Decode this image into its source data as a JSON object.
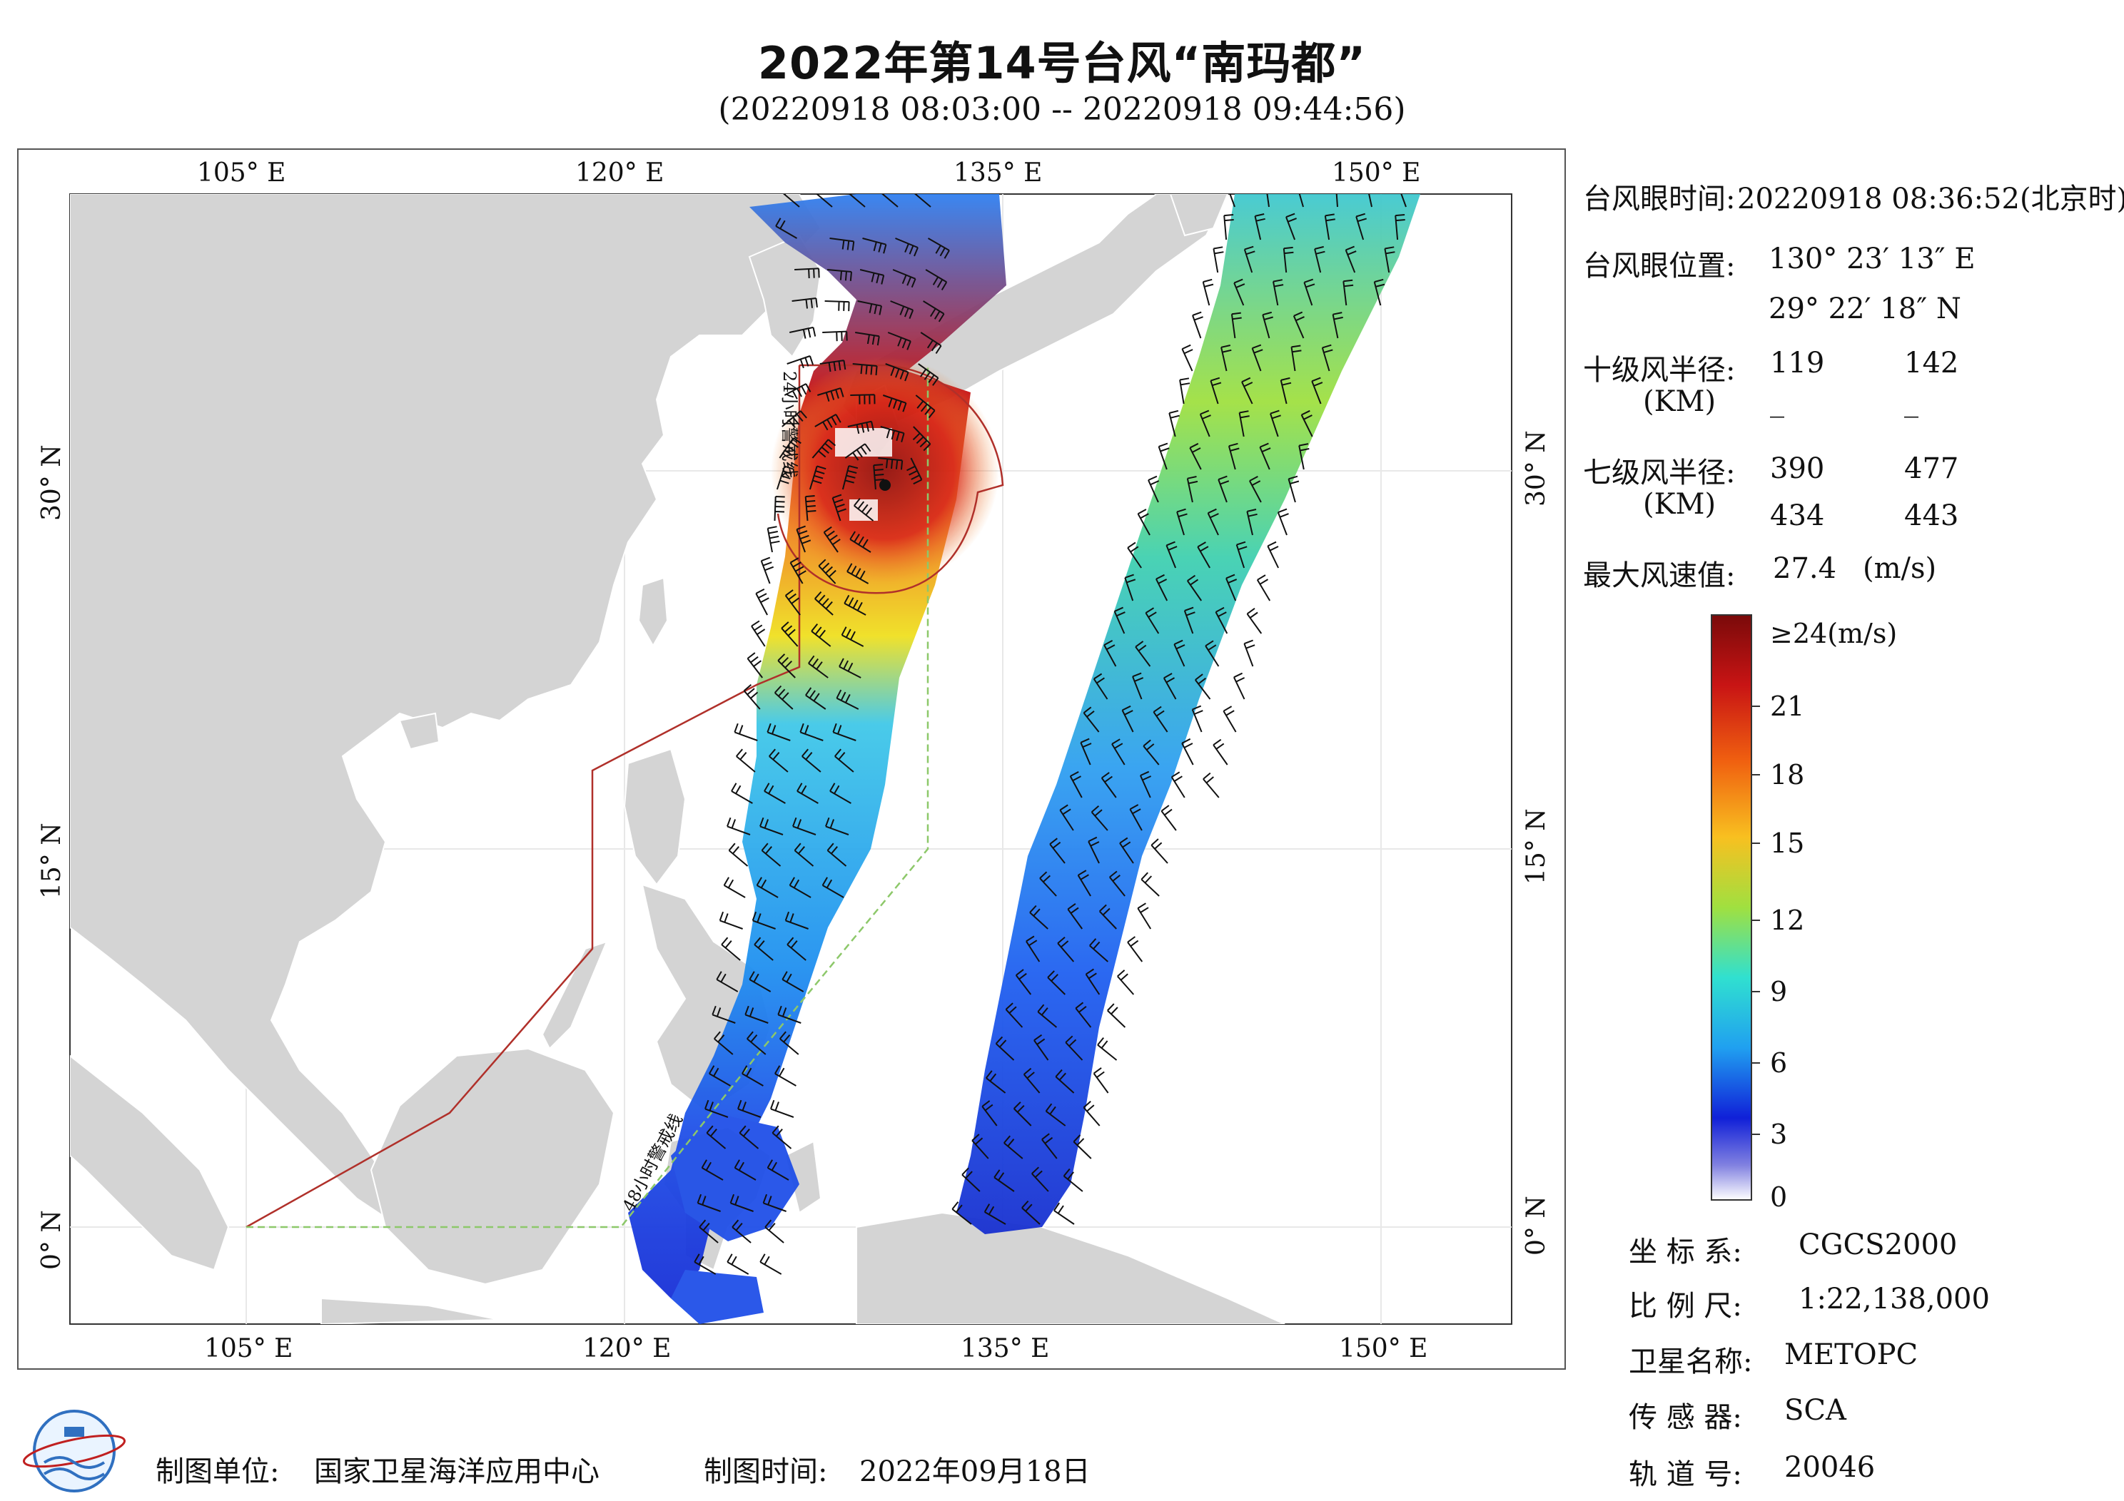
{
  "header": {
    "title": "2022年第14号台风“南玛都”",
    "subtitle": "(20220918 08:03:00 -- 20220918 09:44:56)"
  },
  "map": {
    "lon_labels": [
      "105° E",
      "120° E",
      "135° E",
      "150° E"
    ],
    "lat_labels": [
      "30° N",
      "15° N",
      "0° N"
    ],
    "warning_24h_label": "24小时警戒线",
    "warning_48h_label": "48小时警戒线",
    "colors": {
      "land": "#d4d4d4",
      "sea": "#ffffff",
      "warning_24h": "#b0302a",
      "warning_48h": "#8dc86a",
      "wind_barb": "#111111"
    }
  },
  "info": {
    "eye_time_label": "台风眼时间:",
    "eye_time_value": "20220918 08:36:52(北京时)",
    "eye_pos_label": "台风眼位置:",
    "eye_lon": "130° 23′ 13″ E",
    "eye_lat": "29° 22′ 18″ N",
    "r10_label": "十级风半径:",
    "r10_unit": "(KM)",
    "r10_row1": [
      "119",
      "142"
    ],
    "r10_row2": [
      "_",
      "_"
    ],
    "r7_label": "七级风半径:",
    "r7_unit": "(KM)",
    "r7_row1": [
      "390",
      "477"
    ],
    "r7_row2": [
      "434",
      "443"
    ],
    "max_wind_label": "最大风速值:",
    "max_wind_value": "27.4",
    "max_wind_unit": "(m/s)"
  },
  "colorbar": {
    "top_label": "≥24(m/s)",
    "labels": [
      "21",
      "18",
      "15",
      "12",
      "9",
      "6",
      "3",
      "0"
    ],
    "stops": [
      "#7a0a0a",
      "#c81414",
      "#f04010",
      "#f8a020",
      "#f0e020",
      "#90e040",
      "#30e0c0",
      "#20a0f0",
      "#2050f0",
      "#1010d0",
      "#8080e0",
      "#ffffff"
    ]
  },
  "meta": {
    "crs_label": "坐 标 系:",
    "crs_value": "CGCS2000",
    "scale_label": "比 例 尺:",
    "scale_value": "1:22,138,000",
    "satellite_label": "卫星名称:",
    "satellite_value": "METOPC",
    "sensor_label": "传 感 器:",
    "sensor_value": "SCA",
    "orbit_label": "轨 道 号:",
    "orbit_value": "20046"
  },
  "footer": {
    "unit_label": "制图单位:",
    "unit_value": "国家卫星海洋应用中心",
    "time_label": "制图时间:",
    "time_value": "2022年09月18日"
  }
}
